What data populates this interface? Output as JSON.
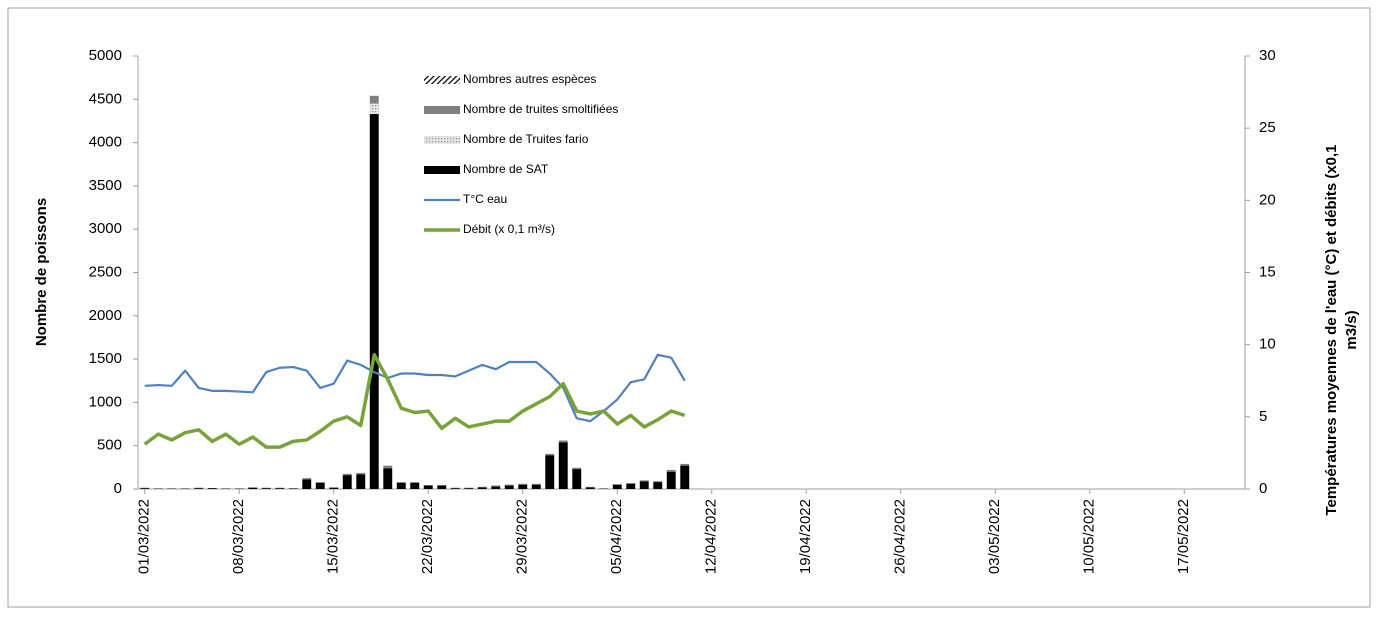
{
  "chart_data": {
    "type": "bar-line",
    "ylabel": "Nombre de poissons",
    "y2label": [
      "Températures moyennes de l'eau (°C) et débits (x0,1",
      "m3/s)"
    ],
    "categories": [
      "01/03/2022",
      null,
      null,
      null,
      null,
      null,
      null,
      "08/03/2022",
      null,
      null,
      null,
      null,
      null,
      null,
      "15/03/2022",
      null,
      null,
      null,
      null,
      null,
      null,
      "22/03/2022",
      null,
      null,
      null,
      null,
      null,
      null,
      "29/03/2022",
      null,
      null,
      null,
      null,
      null,
      null,
      "05/04/2022",
      null,
      null,
      null,
      null,
      null,
      null,
      "12/04/2022",
      null,
      null,
      null,
      null,
      null,
      null,
      "19/04/2022",
      null,
      null,
      null,
      null,
      null,
      null,
      "26/04/2022",
      null,
      null,
      null,
      null,
      null,
      null,
      "03/05/2022",
      null,
      null,
      null,
      null,
      null,
      null,
      "10/05/2022",
      null,
      null,
      null,
      null,
      null,
      null,
      "17/05/2022",
      null,
      null,
      null,
      null
    ],
    "ylim": [
      0,
      5000
    ],
    "yticks": [
      0,
      500,
      1000,
      1500,
      2000,
      2500,
      3000,
      3500,
      4000,
      4500,
      5000
    ],
    "y2lim": [
      0,
      30
    ],
    "y2ticks": [
      0,
      5,
      10,
      15,
      20,
      25,
      30
    ],
    "series": [
      {
        "name": "Nombres autres espèces",
        "color": "#000000",
        "pattern": "hatch",
        "values": [
          0,
          0,
          0,
          0,
          0,
          0,
          0,
          0,
          0,
          0,
          0,
          0,
          0,
          0,
          0,
          0,
          0,
          0,
          0,
          0,
          0,
          0,
          0,
          0,
          0,
          0,
          0,
          0,
          0,
          0,
          0,
          0,
          0,
          0,
          0,
          0,
          0,
          0,
          0,
          0,
          0,
          null,
          null,
          null,
          null,
          null,
          null,
          null,
          null,
          null,
          null,
          null,
          null,
          null,
          null,
          null,
          null,
          null,
          null,
          null,
          null,
          null,
          null,
          null,
          null,
          null,
          null,
          null,
          null,
          null,
          null,
          null,
          null,
          null,
          null,
          null,
          null,
          null,
          null,
          null,
          null,
          null
        ]
      },
      {
        "name": "Nombre de truites smoltifiées",
        "color": "#808080",
        "pattern": "solid",
        "values": [
          5,
          0,
          0,
          0,
          5,
          0,
          0,
          0,
          5,
          5,
          5,
          5,
          15,
          10,
          5,
          15,
          15,
          90,
          30,
          10,
          10,
          5,
          5,
          5,
          5,
          5,
          10,
          10,
          10,
          10,
          15,
          20,
          15,
          5,
          0,
          5,
          10,
          10,
          10,
          20,
          20,
          null,
          null,
          null,
          null,
          null,
          null,
          null,
          null,
          null,
          null,
          null,
          null,
          null,
          null,
          null,
          null,
          null,
          null,
          null,
          null,
          null,
          null,
          null,
          null,
          null,
          null,
          null,
          null,
          null,
          null,
          null,
          null,
          null,
          null,
          null,
          null,
          null,
          null,
          null,
          null,
          null
        ]
      },
      {
        "name": "Nombre de Truites fario",
        "color": "#b0b0b0",
        "pattern": "dots",
        "values": [
          0,
          0,
          0,
          0,
          0,
          0,
          0,
          0,
          0,
          0,
          0,
          0,
          0,
          0,
          0,
          0,
          0,
          120,
          0,
          0,
          0,
          0,
          0,
          0,
          0,
          0,
          0,
          0,
          0,
          0,
          0,
          0,
          0,
          0,
          0,
          0,
          0,
          0,
          0,
          0,
          0,
          null,
          null,
          null,
          null,
          null,
          null,
          null,
          null,
          null,
          null,
          null,
          null,
          null,
          null,
          null,
          null,
          null,
          null,
          null,
          null,
          null,
          null,
          null,
          null,
          null,
          null,
          null,
          null,
          null,
          null,
          null,
          null,
          null,
          null,
          null,
          null,
          null,
          null,
          null,
          null,
          null
        ]
      },
      {
        "name": "Nombre de SAT",
        "color": "#000000",
        "pattern": "solid",
        "values": [
          10,
          5,
          5,
          5,
          10,
          10,
          5,
          5,
          15,
          10,
          10,
          5,
          110,
          70,
          15,
          160,
          170,
          4330,
          240,
          70,
          70,
          40,
          40,
          10,
          10,
          20,
          30,
          40,
          50,
          50,
          390,
          540,
          230,
          20,
          5,
          50,
          60,
          90,
          80,
          200,
          270,
          null,
          null,
          null,
          null,
          null,
          null,
          null,
          null,
          null,
          null,
          null,
          null,
          null,
          null,
          null,
          null,
          null,
          null,
          null,
          null,
          null,
          null,
          null,
          null,
          null,
          null,
          null,
          null,
          null,
          null,
          null,
          null,
          null,
          null,
          null,
          null,
          null,
          null,
          null,
          null,
          null
        ]
      },
      {
        "name": "T°C eau",
        "color": "#4f81bd",
        "axis": "y2",
        "type": "line",
        "values": [
          7.15,
          7.2,
          7.15,
          8.2,
          7.0,
          6.8,
          6.8,
          6.75,
          6.7,
          8.1,
          8.4,
          8.45,
          8.2,
          7.0,
          7.3,
          8.9,
          8.6,
          8.1,
          7.7,
          8.0,
          8.0,
          7.9,
          7.9,
          7.8,
          8.2,
          8.6,
          8.3,
          8.8,
          8.8,
          8.8,
          8.0,
          7.0,
          4.9,
          4.7,
          5.4,
          6.2,
          7.4,
          7.6,
          9.3,
          9.1,
          7.5,
          null,
          null,
          null,
          null,
          null,
          null,
          null,
          null,
          null,
          null,
          null,
          null,
          null,
          null,
          null,
          null,
          null,
          null,
          null,
          null,
          null,
          null,
          null,
          null,
          null,
          null,
          null,
          null,
          null,
          null,
          null,
          null,
          null,
          null,
          null,
          null,
          null,
          null,
          null,
          null,
          null
        ]
      },
      {
        "name": "Débit (x 0,1 m³/s)",
        "color": "#77a33a",
        "axis": "y2",
        "type": "line",
        "values": [
          3.1,
          3.8,
          3.4,
          3.9,
          4.1,
          3.3,
          3.8,
          3.1,
          3.6,
          2.9,
          2.9,
          3.3,
          3.4,
          4.0,
          4.7,
          5.0,
          4.4,
          9.3,
          7.6,
          5.6,
          5.3,
          5.4,
          4.2,
          4.9,
          4.3,
          4.5,
          4.7,
          4.7,
          5.4,
          5.9,
          6.4,
          7.3,
          5.4,
          5.2,
          5.4,
          4.5,
          5.1,
          4.3,
          4.8,
          5.4,
          5.1,
          null,
          null,
          null,
          null,
          null,
          null,
          null,
          null,
          null,
          null,
          null,
          null,
          null,
          null,
          null,
          null,
          null,
          null,
          null,
          null,
          null,
          null,
          null,
          null,
          null,
          null,
          null,
          null,
          null,
          null,
          null,
          null,
          null,
          null,
          null,
          null,
          null,
          null,
          null,
          null,
          null
        ]
      }
    ]
  }
}
